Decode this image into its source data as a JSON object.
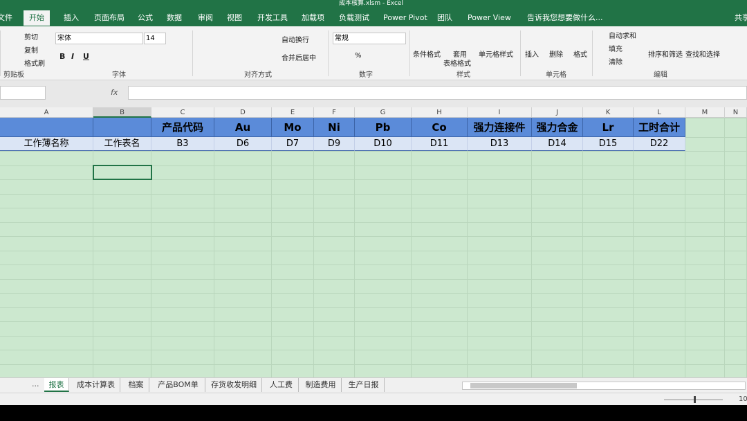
{
  "title_bar": {
    "title": "成本核算.xlsm - Excel"
  },
  "menu_tabs": [
    "文件",
    "开始",
    "插入",
    "页面布局",
    "公式",
    "数据",
    "审阅",
    "视图",
    "开发工具",
    "加载项",
    "负载测试",
    "Power Pivot",
    "团队",
    "Power View"
  ],
  "tell_me": "告诉我您想要做什么...",
  "share": "共享",
  "ribbon": {
    "groups": [
      {
        "label": "剪贴板",
        "buttons": [
          "剪切",
          "复制",
          "格式刷"
        ]
      },
      {
        "label": "字体",
        "font_name": "宋体",
        "font_size": 14,
        "buttons": [
          "B",
          "I",
          "U"
        ]
      },
      {
        "label": "对齐方式",
        "buttons": [
          "自动换行",
          "合并后居中"
        ]
      },
      {
        "label": "数字",
        "format": "常规",
        "buttons": [
          "%"
        ]
      },
      {
        "label": "样式",
        "buttons": [
          "条件格式",
          "套用",
          "表格格式",
          "单元格样式"
        ]
      },
      {
        "label": "单元格",
        "buttons": [
          "插入",
          "删除",
          "格式"
        ]
      },
      {
        "label": "编辑",
        "buttons": [
          "自动求和",
          "填充",
          "清除",
          "排序和筛选",
          "查找和选择"
        ]
      }
    ]
  },
  "formula_bar": {
    "fx": "fx"
  },
  "grid": {
    "columns": [
      "A",
      "B",
      "C",
      "D",
      "E",
      "F",
      "G",
      "H",
      "I",
      "J",
      "K",
      "L",
      "M",
      "N"
    ],
    "rows": [
      [
        null,
        null,
        "产品代码",
        "Au",
        "Mo",
        "Ni",
        "Pb",
        "Co",
        "强力连接件",
        "强力合金",
        "Lr",
        "工时合计"
      ],
      [
        "工作薄名称",
        "工作表名",
        "B3",
        "D6",
        "D7",
        "D9",
        "D10",
        "D11",
        "D13",
        "D14",
        "D15",
        "D22"
      ]
    ]
  },
  "sheet_nav_more": "...",
  "sheet_tabs": [
    "报表",
    "成本计算表",
    "档案",
    "产品BOM单",
    "存货收发明细",
    "人工费",
    "制造费用",
    "生产日报"
  ],
  "status": {
    "zoom": "10"
  }
}
